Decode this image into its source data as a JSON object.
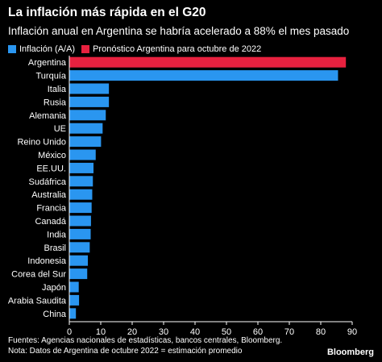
{
  "title": "La inflación más rápida en el G20",
  "subtitle": "Inflación anual en Argentina se habría acelerado a 88% el mes pasado",
  "legend": {
    "inflation": "Inflación (A/A)",
    "forecast": "Pronóstico Argentina para octubre de 2022"
  },
  "colors": {
    "inflation": "#2a96f0",
    "forecast": "#e8213f",
    "background": "#000000",
    "text": "#ffffff"
  },
  "chart_data": {
    "type": "bar",
    "orientation": "horizontal",
    "categories": [
      "Argentina",
      "Turquía",
      "Italia",
      "Rusia",
      "Alemania",
      "UE",
      "Reino Unido",
      "México",
      "EE.UU.",
      "Sudáfrica",
      "Australia",
      "Francia",
      "Canadá",
      "India",
      "Brasil",
      "Indonesia",
      "Corea del Sur",
      "Japón",
      "Arabia Saudita",
      "China"
    ],
    "series": [
      {
        "name": "Inflación (A/A)",
        "values": [
          null,
          85.5,
          12.6,
          12.6,
          11.6,
          10.6,
          10.1,
          8.4,
          7.7,
          7.5,
          7.3,
          7.1,
          6.9,
          6.8,
          6.5,
          5.9,
          5.7,
          3.0,
          3.1,
          2.1
        ]
      },
      {
        "name": "Pronóstico Argentina para octubre de 2022",
        "values": [
          88,
          null,
          null,
          null,
          null,
          null,
          null,
          null,
          null,
          null,
          null,
          null,
          null,
          null,
          null,
          null,
          null,
          null,
          null,
          null
        ]
      }
    ],
    "xlim": [
      0,
      90
    ],
    "xticks": [
      "0",
      "10",
      "20",
      "30",
      "40",
      "50",
      "60",
      "70",
      "80",
      "90"
    ],
    "grid": false,
    "legend_position": "top-left"
  },
  "footer": {
    "sources": "Fuentes: Agencias nacionales de estadísticas, bancos centrales, Bloomberg.",
    "note": "Nota: Datos de Argentina de octubre 2022 = estimación promedio"
  },
  "logo": "Bloomberg"
}
